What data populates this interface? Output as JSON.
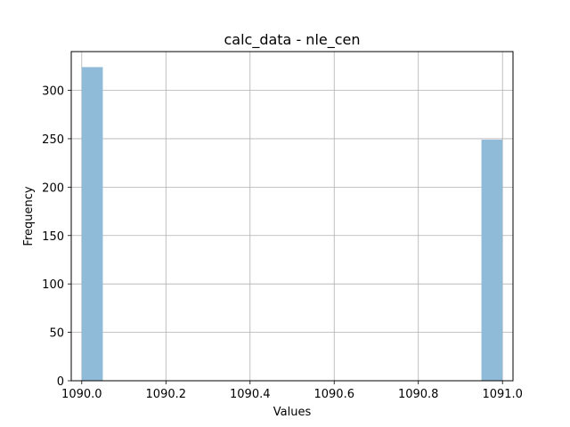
{
  "chart_data": {
    "type": "bar",
    "title": "calc_data - nle_cen",
    "xlabel": "Values",
    "ylabel": "Frequency",
    "xlim": [
      1089.975,
      1091.025
    ],
    "ylim": [
      0,
      340
    ],
    "xticks": [
      1090.0,
      1090.2,
      1090.4,
      1090.6,
      1090.8,
      1091.0
    ],
    "xtick_labels": [
      "1090.0",
      "1090.2",
      "1090.4",
      "1090.6",
      "1090.8",
      "1091.0"
    ],
    "yticks": [
      0,
      50,
      100,
      150,
      200,
      250,
      300
    ],
    "ytick_labels": [
      "0",
      "50",
      "100",
      "150",
      "200",
      "250",
      "300"
    ],
    "grid": true,
    "bins": [
      {
        "x0": 1090.0,
        "x1": 1090.05,
        "count": 324
      },
      {
        "x0": 1090.95,
        "x1": 1091.0,
        "count": 249
      }
    ],
    "bar_color": "#8fbbd9"
  }
}
